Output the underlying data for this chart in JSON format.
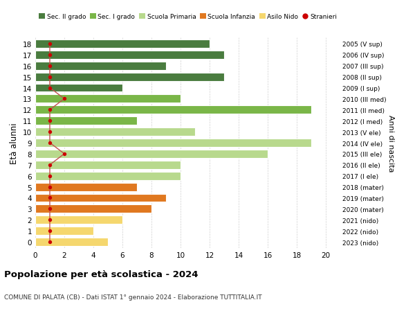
{
  "ages": [
    18,
    17,
    16,
    15,
    14,
    13,
    12,
    11,
    10,
    9,
    8,
    7,
    6,
    5,
    4,
    3,
    2,
    1,
    0
  ],
  "years": [
    "2005 (V sup)",
    "2006 (IV sup)",
    "2007 (III sup)",
    "2008 (II sup)",
    "2009 (I sup)",
    "2010 (III med)",
    "2011 (II med)",
    "2012 (I med)",
    "2013 (V ele)",
    "2014 (IV ele)",
    "2015 (III ele)",
    "2016 (II ele)",
    "2017 (I ele)",
    "2018 (mater)",
    "2019 (mater)",
    "2020 (mater)",
    "2021 (nido)",
    "2022 (nido)",
    "2023 (nido)"
  ],
  "values": [
    12,
    13,
    9,
    13,
    6,
    10,
    19,
    7,
    11,
    19,
    16,
    10,
    10,
    7,
    9,
    8,
    6,
    4,
    5
  ],
  "stranieri": [
    1,
    1,
    1,
    1,
    1,
    2,
    1,
    1,
    1,
    1,
    2,
    1,
    1,
    1,
    1,
    1,
    1,
    1,
    1
  ],
  "bar_colors": [
    "#4a7c3f",
    "#4a7c3f",
    "#4a7c3f",
    "#4a7c3f",
    "#4a7c3f",
    "#7ab648",
    "#7ab648",
    "#7ab648",
    "#b8d98d",
    "#b8d98d",
    "#b8d98d",
    "#b8d98d",
    "#b8d98d",
    "#e07820",
    "#e07820",
    "#e07820",
    "#f5d76e",
    "#f5d76e",
    "#f5d76e"
  ],
  "legend_labels": [
    "Sec. II grado",
    "Sec. I grado",
    "Scuola Primaria",
    "Scuola Infanzia",
    "Asilo Nido",
    "Stranieri"
  ],
  "legend_colors": [
    "#4a7c3f",
    "#7ab648",
    "#b8d98d",
    "#e07820",
    "#f5d76e",
    "#cc0000"
  ],
  "title": "Popolazione per età scolastica - 2024",
  "subtitle": "COMUNE DI PALATA (CB) - Dati ISTAT 1° gennaio 2024 - Elaborazione TUTTITALIA.IT",
  "ylabel": "Età alunni",
  "right_label": "Anni di nascita",
  "stranieri_color": "#cc0000",
  "stranieri_line_color": "#c0504d",
  "background_color": "#ffffff",
  "grid_color": "#cccccc",
  "xlim": [
    0,
    21
  ],
  "xticks": [
    0,
    2,
    4,
    6,
    8,
    10,
    12,
    14,
    16,
    18,
    20
  ]
}
